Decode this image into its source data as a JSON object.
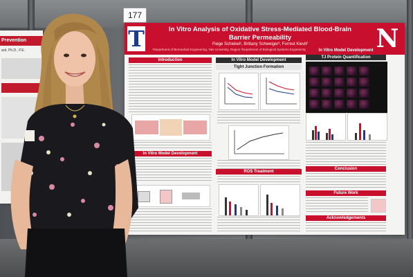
{
  "booth": {
    "number": "177"
  },
  "left_poster": {
    "title": "Prevention",
    "subtitle": "ard, Ph.D., P.E."
  },
  "poster": {
    "title_line1": "In Vitro Analysis of Oxidative Stress-Mediated Blood-Brain",
    "title_line2": "Barrier Permeability",
    "authors": "Paige Schiebel¹, Brittany Schweiger², Forrest Kievit²",
    "affiliation": "¹Department of Biomedical Engineering, Yale University, Region ²Department of Biological Systems Engineering, University of Nebraska-Lincoln, Lincoln, NE",
    "logo_left": "T",
    "logo_right": "N",
    "sections": {
      "introduction": "Introduction",
      "in_vitro_model": "In Vitro Model Development",
      "tight_junction": "Tight Junction Formation",
      "in_vitro_model_2": "In Vitro Model Development",
      "tj_protein": "TJ Protein Quantification",
      "in_vitro_model_left": "In Vitro Model Development",
      "ros_treatment": "ROS Treatment",
      "conclusion": "Conclusion",
      "future_work": "Future Work",
      "acknowledgements": "Acknowledgements"
    }
  },
  "colors": {
    "accent": "#c8102e",
    "navy": "#1c3b8a"
  }
}
